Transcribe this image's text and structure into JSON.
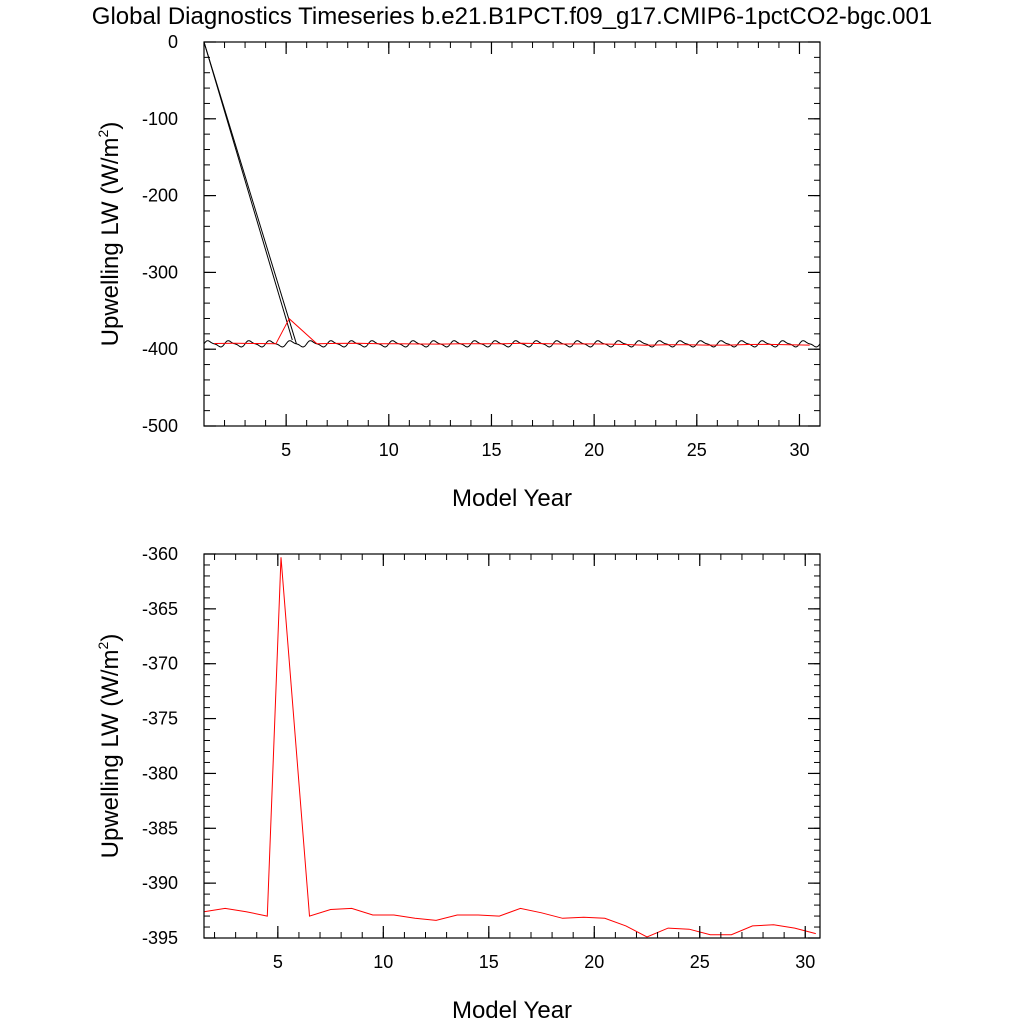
{
  "figure": {
    "title": "Global Diagnostics Timeseries b.e21.B1PCT.f09_g17.CMIP6-1pctCO2-bgc.001"
  },
  "colors": {
    "monthly": "#000000",
    "annual": "#ff0000",
    "frame": "#000000"
  },
  "chart_data": [
    {
      "type": "line",
      "xlabel": "Model Year",
      "ylabel_main": "Upwelling LW (W/m",
      "ylabel_sup": "2",
      "ylabel_close": ")",
      "xlim": [
        1,
        31
      ],
      "ylim": [
        -500,
        0
      ],
      "xticks": [
        5,
        10,
        15,
        20,
        25,
        30
      ],
      "yticks": [
        0,
        -100,
        -200,
        -300,
        -400,
        -500
      ],
      "x_minor_step": 1,
      "y_minor_step": 20,
      "series": [
        {
          "color": "#000000",
          "style": "monthly",
          "x": [
            1.0,
            5.3
          ],
          "y": [
            0,
            -388
          ]
        },
        {
          "color": "#000000",
          "style": "monthly",
          "x": [
            1.0,
            5.5
          ],
          "y": [
            0,
            -393
          ]
        },
        {
          "color": "#000000",
          "style": "monthly-oscillating",
          "x_start": 1.0,
          "x_end": 31.0,
          "mean": -393,
          "amplitude": 3.5,
          "period": 1.0
        },
        {
          "color": "#ff0000",
          "style": "annual",
          "x": [
            1.5,
            2.5,
            3.5,
            4.5,
            5.15,
            6.5,
            7.5,
            8.5,
            9.5,
            10.5,
            11.5,
            12.5,
            13.5,
            14.5,
            15.5,
            16.5,
            17.5,
            18.5,
            19.5,
            20.5,
            21.5,
            22.5,
            23.5,
            24.5,
            25.5,
            26.5,
            27.5,
            28.5,
            29.5,
            30.5
          ],
          "y": [
            -392.6,
            -392.3,
            -392.6,
            -393.0,
            -360.3,
            -393.0,
            -392.4,
            -392.3,
            -392.9,
            -392.9,
            -393.2,
            -393.4,
            -392.9,
            -392.9,
            -393.0,
            -392.3,
            -392.7,
            -393.2,
            -393.1,
            -393.2,
            -393.9,
            -394.9,
            -394.1,
            -394.2,
            -394.7,
            -394.7,
            -393.9,
            -393.8,
            -394.1,
            -394.6
          ]
        }
      ]
    },
    {
      "type": "line",
      "xlabel": "Model Year",
      "ylabel_main": "Upwelling LW (W/m",
      "ylabel_sup": "2",
      "ylabel_close": ")",
      "xlim": [
        1.5,
        30.7
      ],
      "ylim": [
        -395,
        -360
      ],
      "xticks": [
        5,
        10,
        15,
        20,
        25,
        30
      ],
      "yticks": [
        -360,
        -365,
        -370,
        -375,
        -380,
        -385,
        -390,
        -395
      ],
      "x_minor_step": 1,
      "y_minor_step": 1,
      "series": [
        {
          "color": "#ff0000",
          "style": "annual",
          "x": [
            1.5,
            2.5,
            3.5,
            4.5,
            5.15,
            6.5,
            7.5,
            8.5,
            9.5,
            10.5,
            11.5,
            12.5,
            13.5,
            14.5,
            15.5,
            16.5,
            17.5,
            18.5,
            19.5,
            20.5,
            21.5,
            22.5,
            23.5,
            24.5,
            25.5,
            26.5,
            27.5,
            28.5,
            29.5,
            30.5
          ],
          "y": [
            -392.6,
            -392.3,
            -392.6,
            -393.0,
            -360.3,
            -393.0,
            -392.4,
            -392.3,
            -392.9,
            -392.9,
            -393.2,
            -393.4,
            -392.9,
            -392.9,
            -393.0,
            -392.3,
            -392.7,
            -393.2,
            -393.1,
            -393.2,
            -393.9,
            -394.9,
            -394.1,
            -394.2,
            -394.7,
            -394.7,
            -393.9,
            -393.8,
            -394.1,
            -394.6
          ]
        }
      ]
    }
  ]
}
